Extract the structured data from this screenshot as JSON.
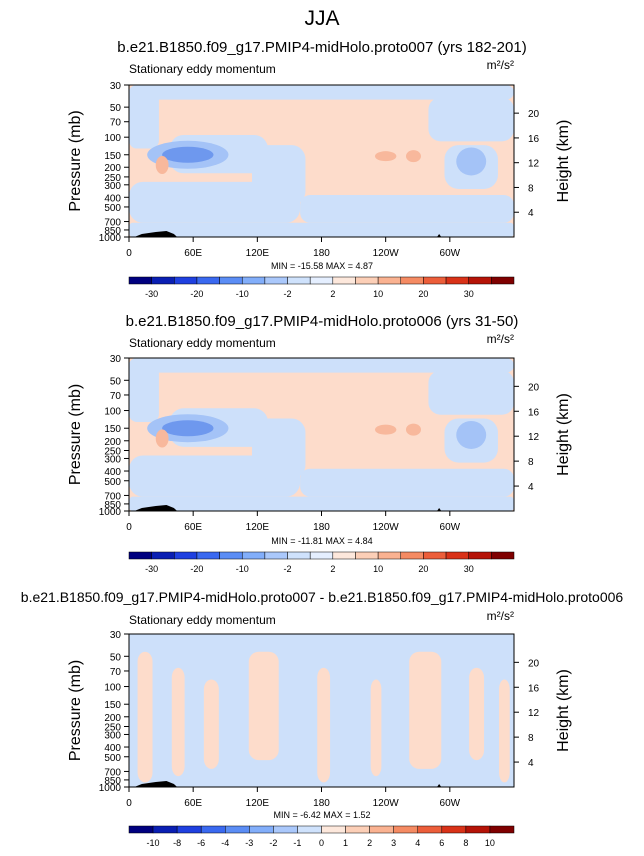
{
  "page": {
    "title": "JJA"
  },
  "palette": {
    "full": [
      "#00007f",
      "#0a1fb3",
      "#1f40e0",
      "#3a69f0",
      "#5b8df5",
      "#82aefa",
      "#aac8fb",
      "#cfe2fc",
      "#e5efff",
      "#fde8dc",
      "#fccfb7",
      "#fab291",
      "#f58b63",
      "#ec5e3a",
      "#d93218",
      "#b51307",
      "#7f0000"
    ],
    "fill_pos": "#fddccb",
    "fill_neg": "#cde0fa",
    "fill_mid_neg": "#a4c3f7",
    "fill_strong_neg": "#6e98ee",
    "fill_mid_pos": "#f8b89c",
    "terrain": "#000000"
  },
  "chart_data": [
    {
      "type": "heatmap",
      "title": "b.e21.B1850.f09_g17.PMIP4-midHolo.proto007 (yrs 182-201)",
      "subtitle_left": "Stationary eddy momentum",
      "units": "m²/s²",
      "ylabel": "Pressure (mb)",
      "ylabel_right": "Height (km)",
      "x_ticks": [
        "0",
        "60E",
        "120E",
        "180",
        "120W",
        "60W"
      ],
      "y_ticks": [
        "30",
        "50",
        "70",
        "100",
        "150",
        "200",
        "250",
        "300",
        "400",
        "500",
        "700",
        "850",
        "1000"
      ],
      "right_ticks": [
        "20",
        "16",
        "12",
        "8",
        "4"
      ],
      "min": "-15.58",
      "max": "4.87",
      "stats_text": "MIN = -15.58   MAX =   4.87",
      "colorbar_labels": [
        "-30",
        "-20",
        "-10",
        "-2",
        "2",
        "10",
        "20",
        "30"
      ],
      "colorbar_levels": 17
    },
    {
      "type": "heatmap",
      "title": "b.e21.B1850.f09_g17.PMIP4-midHolo.proto006 (yrs 31-50)",
      "subtitle_left": "Stationary eddy momentum",
      "units": "m²/s²",
      "ylabel": "Pressure (mb)",
      "ylabel_right": "Height (km)",
      "x_ticks": [
        "0",
        "60E",
        "120E",
        "180",
        "120W",
        "60W"
      ],
      "y_ticks": [
        "30",
        "50",
        "70",
        "100",
        "150",
        "200",
        "250",
        "300",
        "400",
        "500",
        "700",
        "850",
        "1000"
      ],
      "right_ticks": [
        "20",
        "16",
        "12",
        "8",
        "4"
      ],
      "min": "-11.81",
      "max": "4.84",
      "stats_text": "MIN = -11.81   MAX =   4.84",
      "colorbar_labels": [
        "-30",
        "-20",
        "-10",
        "-2",
        "2",
        "10",
        "20",
        "30"
      ],
      "colorbar_levels": 17
    },
    {
      "type": "heatmap",
      "title": "b.e21.B1850.f09_g17.PMIP4-midHolo.proto007 - b.e21.B1850.f09_g17.PMIP4-midHolo.proto006",
      "subtitle_left": "Stationary eddy momentum",
      "units": "m²/s²",
      "ylabel": "Pressure (mb)",
      "ylabel_right": "Height (km)",
      "x_ticks": [
        "0",
        "60E",
        "120E",
        "180",
        "120W",
        "60W"
      ],
      "y_ticks": [
        "30",
        "50",
        "70",
        "100",
        "150",
        "200",
        "250",
        "300",
        "400",
        "500",
        "700",
        "850",
        "1000"
      ],
      "right_ticks": [
        "20",
        "16",
        "12",
        "8",
        "4"
      ],
      "min": "-6.42",
      "max": "1.52",
      "stats_text": "MIN = -6.42   MAX =   1.52",
      "colorbar_labels": [
        "-10",
        "-8",
        "-6",
        "-4",
        "-3",
        "-2",
        "-1",
        "0",
        "1",
        "2",
        "3",
        "4",
        "6",
        "8",
        "10"
      ],
      "colorbar_levels": 16
    }
  ]
}
